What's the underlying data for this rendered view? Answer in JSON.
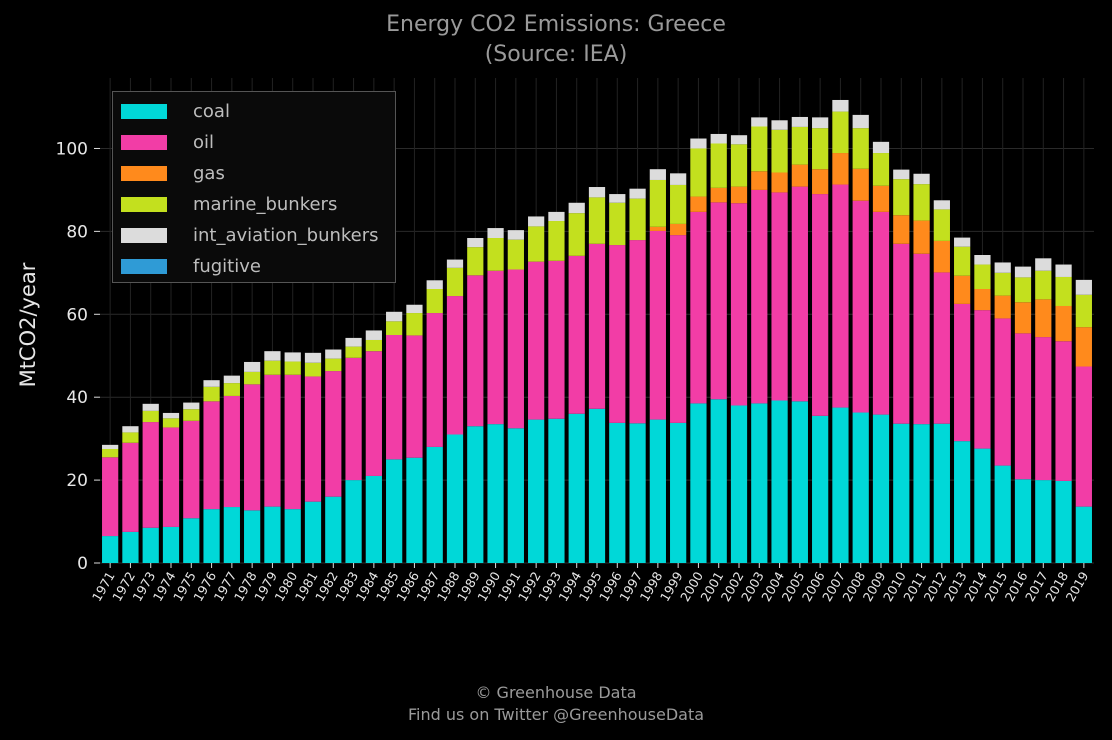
{
  "title": "Energy CO2 Emissions: Greece",
  "subtitle": "(Source: IEA)",
  "footer": {
    "line1": "© Greenhouse Data",
    "line2": "Find us on Twitter @GreenhouseData"
  },
  "chart_data": {
    "type": "bar",
    "stacked": true,
    "ylabel": "MtCO2/year",
    "ylim": [
      0,
      117
    ],
    "yticks": [
      0,
      20,
      40,
      60,
      80,
      100
    ],
    "grid": true,
    "legend_position": "top-left",
    "categories": [
      "1971",
      "1972",
      "1973",
      "1974",
      "1975",
      "1976",
      "1977",
      "1978",
      "1979",
      "1980",
      "1981",
      "1982",
      "1983",
      "1984",
      "1985",
      "1986",
      "1987",
      "1988",
      "1989",
      "1990",
      "1991",
      "1992",
      "1993",
      "1994",
      "1995",
      "1996",
      "1997",
      "1998",
      "1999",
      "2000",
      "2001",
      "2002",
      "2003",
      "2004",
      "2005",
      "2006",
      "2007",
      "2008",
      "2009",
      "2010",
      "2011",
      "2012",
      "2013",
      "2014",
      "2015",
      "2016",
      "2017",
      "2018",
      "2019"
    ],
    "series": [
      {
        "name": "coal",
        "color": "#00d8d8",
        "values": [
          6.5,
          7.5,
          8.5,
          8.7,
          10.8,
          13,
          13.5,
          12.7,
          13.6,
          13,
          14.8,
          16,
          20,
          21,
          25,
          25.4,
          28,
          31,
          33,
          33.5,
          32.5,
          34.6,
          34.8,
          36,
          37.2,
          33.8,
          33.7,
          34.6,
          33.8,
          38.5,
          39.5,
          38,
          38.5,
          39.2,
          39,
          35.5,
          37.5,
          36.3,
          35.8,
          33.6,
          33.5,
          33.6,
          29.4,
          27.6,
          23.5,
          20.2,
          20,
          19.8,
          13.6
        ]
      },
      {
        "name": "oil",
        "color": "#f23da6",
        "values": [
          19,
          21.5,
          25.5,
          24,
          23.5,
          26,
          26.8,
          30.4,
          31.8,
          32.4,
          30.2,
          30.3,
          29.5,
          30.1,
          30,
          29.5,
          32.3,
          33.4,
          36.4,
          37,
          38.3,
          38.1,
          38.1,
          38.1,
          39.8,
          42.9,
          44.2,
          45.5,
          45.3,
          46.2,
          47.5,
          48.8,
          51.5,
          50.2,
          51.8,
          53.5,
          53.8,
          51.1,
          48.9,
          43.4,
          41.1,
          36.5,
          33.1,
          33.4,
          35.5,
          35.2,
          34.5,
          33.7,
          33.8
        ]
      },
      {
        "name": "gas",
        "color": "#ff8a1c",
        "values": [
          0,
          0,
          0,
          0,
          0,
          0,
          0,
          0,
          0,
          0,
          0,
          0,
          0,
          0,
          0,
          0,
          0,
          0,
          0,
          0,
          0,
          0,
          0,
          0,
          0,
          0,
          0,
          1,
          2.7,
          3.7,
          3.5,
          4,
          4.5,
          4.8,
          5.3,
          6,
          7.6,
          7.7,
          6.3,
          6.9,
          8,
          7.6,
          6.8,
          5.1,
          5.5,
          7.5,
          9.1,
          8.5,
          9.5
        ]
      },
      {
        "name": "marine_bunkers",
        "color": "#c3e01e",
        "values": [
          2,
          2.5,
          2.7,
          2.2,
          2.8,
          3.5,
          3.1,
          3,
          3.4,
          3.2,
          3.3,
          3,
          2.7,
          2.7,
          3.3,
          5.4,
          5.8,
          6.8,
          6.8,
          7.9,
          7.2,
          8.5,
          9.6,
          10.3,
          11.2,
          10.2,
          10,
          11.3,
          9.4,
          11.6,
          10.7,
          10.2,
          10.8,
          10.3,
          9.1,
          9.9,
          10,
          9.8,
          7.9,
          8.7,
          8.8,
          7.6,
          7,
          5.9,
          5.5,
          6,
          6.9,
          7,
          7.8
        ]
      },
      {
        "name": "int_aviation_bunkers",
        "color": "#dcdcdc",
        "values": [
          1,
          1.5,
          1.7,
          1.3,
          1.6,
          1.6,
          1.8,
          2.4,
          2.3,
          2.2,
          2.4,
          2.2,
          2.1,
          2.3,
          2.3,
          2,
          2.1,
          2,
          2.2,
          2.4,
          2.3,
          2.4,
          2.2,
          2.5,
          2.5,
          2.1,
          2.4,
          2.6,
          2.8,
          2.4,
          2.3,
          2.2,
          2.2,
          2.3,
          2.4,
          2.6,
          2.8,
          3.2,
          2.7,
          2.3,
          2.5,
          2.2,
          2.2,
          2.3,
          2.5,
          2.6,
          3,
          3,
          3.6
        ]
      },
      {
        "name": "fugitive",
        "color": "#2f9bd6",
        "values": [
          0,
          0,
          0,
          0,
          0,
          0,
          0,
          0,
          0,
          0,
          0,
          0,
          0,
          0,
          0,
          0,
          0,
          0,
          0,
          0,
          0,
          0,
          0,
          0,
          0,
          0,
          0,
          0,
          0,
          0,
          0,
          0,
          0,
          0,
          0,
          0,
          0,
          0,
          0,
          0,
          0,
          0,
          0,
          0,
          0,
          0,
          0,
          0,
          0
        ]
      }
    ]
  }
}
